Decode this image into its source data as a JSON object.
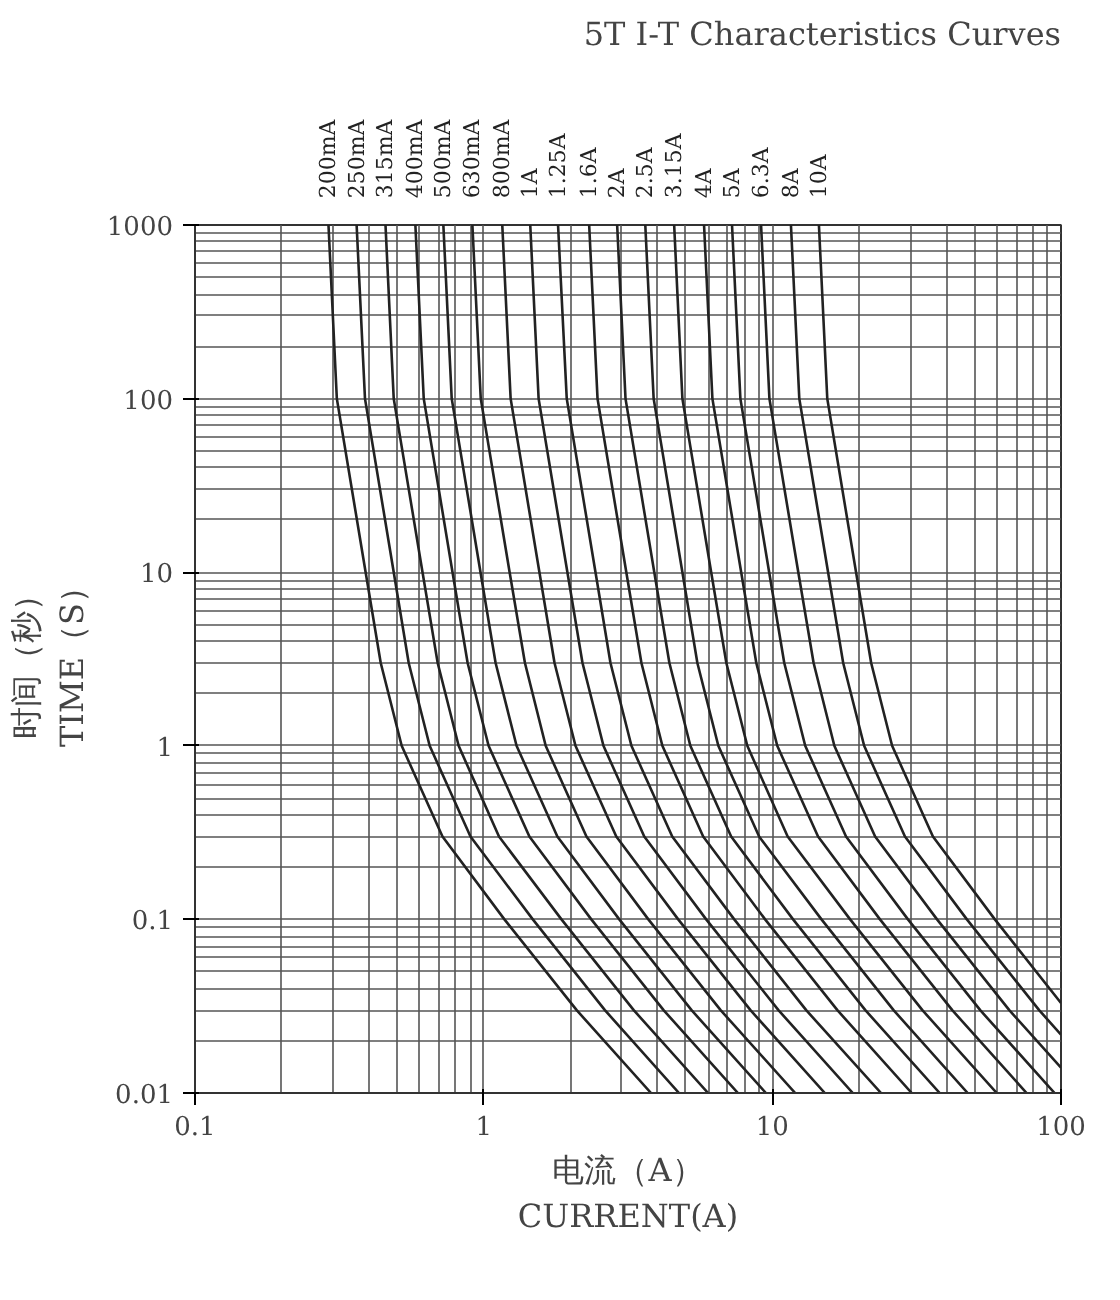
{
  "chart_data": {
    "type": "line",
    "title": "5T I-T Characteristics Curves",
    "xlabel": "电流（A）\nCURRENT(A)",
    "ylabel": "时间（秒）\nTIME（S）",
    "log": "xy",
    "grid": true,
    "legend": false,
    "line_style": "solid",
    "marker": "none",
    "xlim": [
      0.1,
      100
    ],
    "ylim": [
      0.01,
      1000
    ],
    "xticks": [
      0.1,
      1,
      10,
      100
    ],
    "yticks": [
      0.01,
      0.1,
      1,
      10,
      100,
      1000
    ],
    "series": [
      {
        "name": "200mA",
        "color": "#222222",
        "x": [
          0.29,
          0.31,
          0.39,
          0.44,
          0.52,
          0.72,
          1.18,
          2.1,
          3.8
        ],
        "values": [
          1000,
          100,
          10,
          3,
          1,
          0.3,
          0.1,
          0.03,
          0.01
        ]
      },
      {
        "name": "250mA",
        "color": "#222222",
        "x": [
          0.363,
          0.388,
          0.488,
          0.55,
          0.65,
          0.9,
          1.48,
          2.63,
          4.75
        ],
        "values": [
          1000,
          100,
          10,
          3,
          1,
          0.3,
          0.1,
          0.03,
          0.01
        ]
      },
      {
        "name": "315mA",
        "color": "#222222",
        "x": [
          0.457,
          0.488,
          0.614,
          0.693,
          0.819,
          1.13,
          1.86,
          3.31,
          5.99
        ],
        "values": [
          1000,
          100,
          10,
          3,
          1,
          0.3,
          0.1,
          0.03,
          0.01
        ]
      },
      {
        "name": "400mA",
        "color": "#222222",
        "x": [
          0.58,
          0.62,
          0.78,
          0.88,
          1.04,
          1.44,
          2.36,
          4.2,
          7.6
        ],
        "values": [
          1000,
          100,
          10,
          3,
          1,
          0.3,
          0.1,
          0.03,
          0.01
        ]
      },
      {
        "name": "500mA",
        "color": "#222222",
        "x": [
          0.725,
          0.775,
          0.975,
          1.1,
          1.3,
          1.8,
          2.95,
          5.25,
          9.5
        ],
        "values": [
          1000,
          100,
          10,
          3,
          1,
          0.3,
          0.1,
          0.03,
          0.01
        ]
      },
      {
        "name": "630mA",
        "color": "#222222",
        "x": [
          0.914,
          0.977,
          1.23,
          1.39,
          1.64,
          2.27,
          3.72,
          6.62,
          12
        ],
        "values": [
          1000,
          100,
          10,
          3,
          1,
          0.3,
          0.1,
          0.03,
          0.01
        ]
      },
      {
        "name": "800mA",
        "color": "#222222",
        "x": [
          1.16,
          1.24,
          1.56,
          1.76,
          2.08,
          2.88,
          4.72,
          8.4,
          15.2
        ],
        "values": [
          1000,
          100,
          10,
          3,
          1,
          0.3,
          0.1,
          0.03,
          0.01
        ]
      },
      {
        "name": "1A",
        "color": "#222222",
        "x": [
          1.45,
          1.55,
          1.95,
          2.2,
          2.6,
          3.6,
          5.9,
          10.5,
          19
        ],
        "values": [
          1000,
          100,
          10,
          3,
          1,
          0.3,
          0.1,
          0.03,
          0.01
        ]
      },
      {
        "name": "1.25A",
        "color": "#222222",
        "x": [
          1.81,
          1.94,
          2.44,
          2.75,
          3.25,
          4.5,
          7.38,
          13.1,
          23.8
        ],
        "values": [
          1000,
          100,
          10,
          3,
          1,
          0.3,
          0.1,
          0.03,
          0.01
        ]
      },
      {
        "name": "1.6A",
        "color": "#222222",
        "x": [
          2.32,
          2.48,
          3.12,
          3.52,
          4.16,
          5.76,
          9.44,
          16.8,
          30.4
        ],
        "values": [
          1000,
          100,
          10,
          3,
          1,
          0.3,
          0.1,
          0.03,
          0.01
        ]
      },
      {
        "name": "2A",
        "color": "#222222",
        "x": [
          2.9,
          3.1,
          3.9,
          4.4,
          5.2,
          7.2,
          11.8,
          21,
          38
        ],
        "values": [
          1000,
          100,
          10,
          3,
          1,
          0.3,
          0.1,
          0.03,
          0.01
        ]
      },
      {
        "name": "2.5A",
        "color": "#222222",
        "x": [
          3.63,
          3.88,
          4.88,
          5.5,
          6.5,
          9,
          14.8,
          26.3,
          47.5
        ],
        "values": [
          1000,
          100,
          10,
          3,
          1,
          0.3,
          0.1,
          0.03,
          0.01
        ]
      },
      {
        "name": "3.15A",
        "color": "#222222",
        "x": [
          4.57,
          4.88,
          6.14,
          6.93,
          8.19,
          11.3,
          18.6,
          33.1,
          59.9
        ],
        "values": [
          1000,
          100,
          10,
          3,
          1,
          0.3,
          0.1,
          0.03,
          0.01
        ]
      },
      {
        "name": "4A",
        "color": "#222222",
        "x": [
          5.8,
          6.2,
          7.8,
          8.8,
          10.4,
          14.4,
          23.6,
          42,
          76
        ],
        "values": [
          1000,
          100,
          10,
          3,
          1,
          0.3,
          0.1,
          0.03,
          0.01
        ]
      },
      {
        "name": "5A",
        "color": "#222222",
        "x": [
          7.25,
          7.75,
          9.75,
          11,
          13,
          18,
          29.5,
          52.5,
          95
        ],
        "values": [
          1000,
          100,
          10,
          3,
          1,
          0.3,
          0.1,
          0.03,
          0.01
        ]
      },
      {
        "name": "6.3A",
        "color": "#222222",
        "x": [
          9.14,
          9.77,
          12.3,
          13.9,
          16.4,
          22.7,
          37.2,
          66.2,
          100
        ],
        "values": [
          1000,
          100,
          10,
          3,
          1,
          0.3,
          0.1,
          0.03,
          0.014
        ]
      },
      {
        "name": "8A",
        "color": "#222222",
        "x": [
          11.6,
          12.4,
          15.6,
          17.6,
          20.8,
          28.8,
          47.2,
          84,
          100
        ],
        "values": [
          1000,
          100,
          10,
          3,
          1,
          0.3,
          0.1,
          0.03,
          0.0217
        ]
      },
      {
        "name": "10A",
        "color": "#222222",
        "x": [
          14.5,
          15.5,
          19.5,
          22,
          26,
          36,
          59,
          100
        ],
        "values": [
          1000,
          100,
          10,
          3,
          1,
          0.3,
          0.1,
          0.033
        ]
      }
    ]
  }
}
